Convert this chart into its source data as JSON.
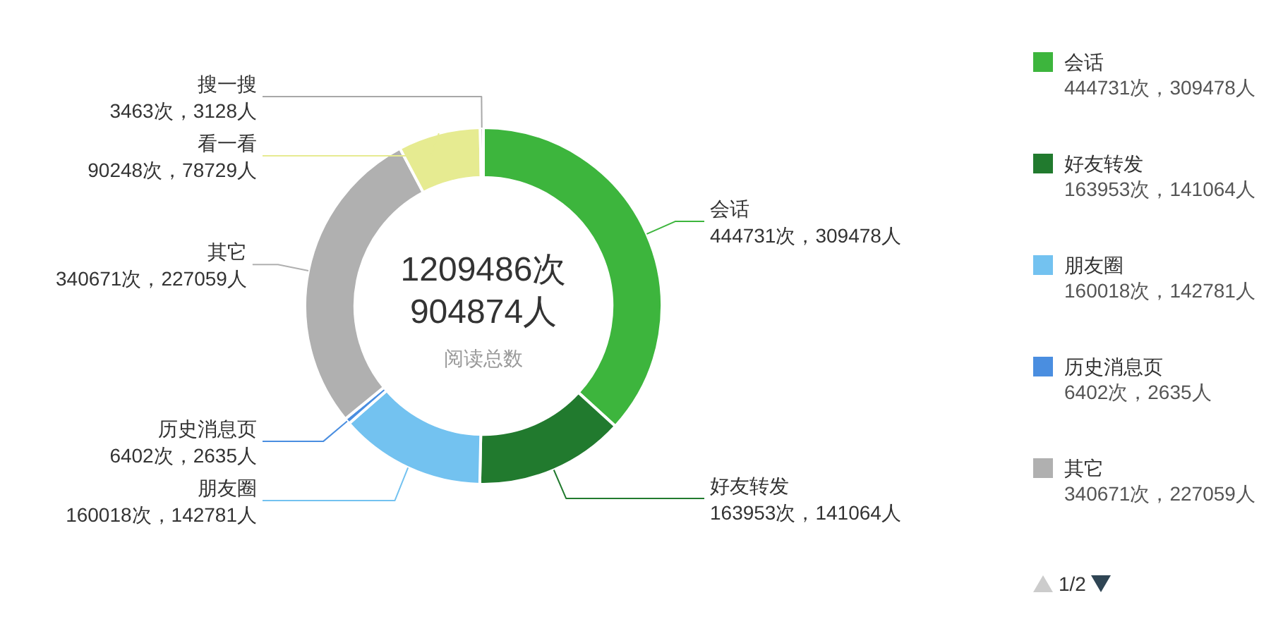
{
  "chart_data": {
    "type": "donut",
    "categories": [
      "会话",
      "好友转发",
      "朋友圈",
      "历史消息页",
      "其它",
      "看一看",
      "搜一搜"
    ],
    "values": [
      444731,
      163953,
      160018,
      6402,
      340671,
      90248,
      3463
    ],
    "value_labels": [
      "444731次，309478人",
      "163953次，141064人",
      "160018次，142781人",
      "6402次，2635人",
      "340671次，227059人",
      "90248次，78729人",
      "3463次，3128人"
    ],
    "colors": [
      "#3db53d",
      "#217a2e",
      "#73c2f0",
      "#4a8ee0",
      "#b0b0b0",
      "#e6eb91",
      "#a8a8a8"
    ],
    "annotations": [
      "1209486次",
      "904874人",
      "阅读总数",
      "1/2"
    ],
    "legend": "right"
  }
}
